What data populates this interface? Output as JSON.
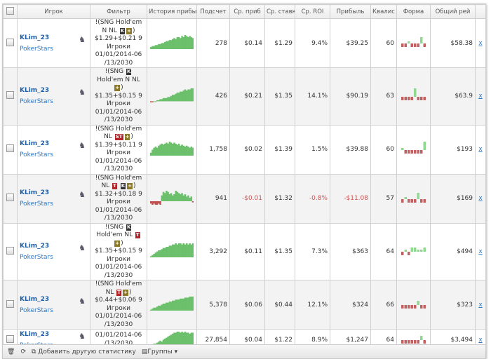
{
  "columns": [
    "Игрок",
    "Фильтр",
    "История прибыли",
    "Подсчет",
    "Ср. приб",
    "Ср. ставк",
    "Ср. ROI",
    "Прибыль",
    "Квалис",
    "Форма",
    "Общий рей"
  ],
  "colors": {
    "positive": "#6cc06c",
    "negative": "#c05050",
    "link": "#1f5fa8"
  },
  "rows": [
    {
      "player": "KLim_23",
      "site": "PokerStars",
      "filter": [
        {
          "t": "!(SNG Hold'em N NL "
        },
        {
          "b": "K"
        },
        {
          "b": "+"
        },
        {
          "t": ") $1.29+$0.21 9 Игроки 01/01/2014-06 /13/2030"
        }
      ],
      "count": "278",
      "avg_profit": "$0.14",
      "avg_stake": "$1.29",
      "roi": "9.4%",
      "profit": "$39.25",
      "qual": "60",
      "total": "$58.38",
      "remove": "x",
      "form": [
        -1,
        -1,
        1,
        -1,
        -1,
        -1,
        3,
        -1
      ],
      "history": [
        2,
        3,
        3,
        4,
        4,
        5,
        5,
        6,
        6,
        7,
        8,
        8,
        9,
        9,
        10,
        11,
        10,
        12,
        12,
        11,
        13,
        12,
        14,
        13,
        12,
        13,
        12,
        11
      ]
    },
    {
      "player": "KLim_23",
      "site": "PokerStars",
      "filter": [
        {
          "t": "!(SNG "
        },
        {
          "b": "K"
        },
        {
          "t": " Hold'em N NL "
        },
        {
          "b": "+"
        },
        {
          "t": ") $1.35+$0.15 9 Игроки 01/01/2014-06 /13/2030"
        }
      ],
      "count": "426",
      "avg_profit": "$0.21",
      "avg_stake": "$1.35",
      "roi": "14.1%",
      "profit": "$90.19",
      "qual": "63",
      "total": "$63.9",
      "remove": "x",
      "form": [
        -1,
        -1,
        -1,
        -1,
        4,
        -1,
        -1,
        -1
      ],
      "history": [
        -1,
        -1,
        0,
        0,
        1,
        1,
        2,
        2,
        3,
        3,
        3,
        4,
        4,
        5,
        6,
        6,
        7,
        8,
        8,
        9,
        9,
        10,
        11,
        10,
        11,
        11,
        12,
        12
      ]
    },
    {
      "player": "KLim_23",
      "site": "PokerStars",
      "filter": [
        {
          "t": "!(SNG Hold'em NL "
        },
        {
          "b": "ST"
        },
        {
          "b": "+"
        },
        {
          "t": ") $1.39+$0.11 9 Игроки 01/01/2014-06 /13/2030"
        }
      ],
      "count": "1,758",
      "avg_profit": "$0.02",
      "avg_stake": "$1.39",
      "roi": "1.5%",
      "profit": "$39.88",
      "qual": "60",
      "total": "$193",
      "remove": "x",
      "form": [
        1,
        -1,
        -1,
        -1,
        -1,
        -1,
        -1,
        4
      ],
      "history": [
        3,
        6,
        8,
        9,
        8,
        10,
        11,
        12,
        11,
        12,
        13,
        12,
        14,
        13,
        12,
        13,
        12,
        11,
        12,
        10,
        11,
        10,
        9,
        10,
        9,
        8,
        9,
        8
      ]
    },
    {
      "player": "KLim_23",
      "site": "PokerStars",
      "filter": [
        {
          "t": "!(SNG Hold'em NL "
        },
        {
          "b": "T"
        },
        {
          "t": " "
        },
        {
          "b": "K"
        },
        {
          "b": "+"
        },
        {
          "t": ") $1.32+$0.18 9 Игроки 01/01/2014-06 /13/2030"
        }
      ],
      "count": "941",
      "avg_profit": "-$0.01",
      "avg_stake": "$1.32",
      "roi": "-0.8%",
      "profit": "-$11.08",
      "qual": "57",
      "total": "$169",
      "remove": "x",
      "form": [
        -1,
        1,
        -1,
        -1,
        -1,
        3,
        -1,
        -1
      ],
      "history": [
        -2,
        -3,
        -2,
        -3,
        -3,
        -2,
        -3,
        5,
        8,
        7,
        9,
        8,
        6,
        7,
        5,
        6,
        9,
        8,
        7,
        6,
        7,
        5,
        6,
        4,
        5,
        3,
        4,
        -1
      ]
    },
    {
      "player": "KLim_23",
      "site": "PokerStars",
      "filter": [
        {
          "t": "!(SNG "
        },
        {
          "b": "K"
        },
        {
          "t": " Hold'em NL "
        },
        {
          "b": "T"
        },
        {
          "t": " "
        },
        {
          "b": "+"
        },
        {
          "t": ") $1.35+$0.15 9 Игроки 01/01/2014-06 /13/2030"
        }
      ],
      "count": "3,292",
      "avg_profit": "$0.11",
      "avg_stake": "$1.35",
      "roi": "7.3%",
      "profit": "$363",
      "qual": "64",
      "total": "$494",
      "remove": "x",
      "form": [
        -1,
        1,
        -1,
        2,
        2,
        1,
        1,
        2
      ],
      "history": [
        1,
        2,
        3,
        4,
        5,
        6,
        6,
        7,
        8,
        8,
        9,
        9,
        10,
        10,
        11,
        11,
        12,
        11,
        12,
        12,
        11,
        12,
        11,
        12,
        11,
        12,
        11,
        12
      ]
    },
    {
      "player": "KLim_23",
      "site": "PokerStars",
      "filter": [
        {
          "t": "!(SNG Hold'em NL "
        },
        {
          "b": "T"
        },
        {
          "b": "+"
        },
        {
          "t": ") $0.44+$0.06 9 Игроки 01/01/2014-06 /13/2030"
        }
      ],
      "count": "5,378",
      "avg_profit": "$0.06",
      "avg_stake": "$0.44",
      "roi": "12.1%",
      "profit": "$324",
      "qual": "66",
      "total": "$323",
      "remove": "x",
      "form": [
        -1,
        -1,
        -1,
        -1,
        -1,
        2,
        -1,
        -1
      ],
      "history": [
        1,
        2,
        3,
        3,
        4,
        5,
        5,
        6,
        7,
        7,
        8,
        8,
        9,
        9,
        10,
        10,
        11,
        11,
        11,
        12,
        12,
        12,
        13,
        13,
        13,
        14,
        14,
        14
      ]
    },
    {
      "player": "KLim_23",
      "site": "PokerStars",
      "filter": [
        {
          "t": "01/01/2014-06 /13/2030"
        }
      ],
      "count": "27,854",
      "avg_profit": "$0.04",
      "avg_stake": "$1.22",
      "roi": "8.9%",
      "profit": "$1,247",
      "qual": "64",
      "total": "$3,494",
      "remove": "x",
      "form": [
        -1,
        -1,
        -1,
        -1,
        -1,
        -1,
        2,
        -1
      ],
      "history": [
        1,
        1,
        2,
        2,
        3,
        4,
        5,
        4,
        6,
        7,
        8,
        9,
        10,
        11,
        12,
        13,
        13,
        14,
        14,
        13,
        14,
        13,
        14,
        13,
        13,
        12,
        13,
        13
      ]
    }
  ],
  "footer": {
    "add_stat": "Добавить другую статистику",
    "groups": "Группы"
  }
}
